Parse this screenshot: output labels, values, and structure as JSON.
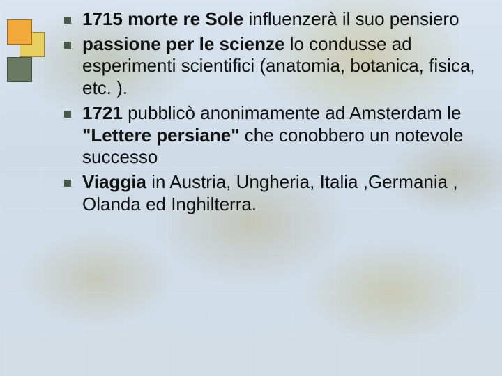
{
  "slide": {
    "background": {
      "gradient_top": "#d9e4ef",
      "gradient_mid": "#cfdce8",
      "gradient_bottom": "#d2dde6",
      "land_tone": "#b8b08a"
    },
    "decoration": {
      "squares": [
        {
          "color": "#f2a93c"
        },
        {
          "color": "#e6cf5e"
        },
        {
          "color": "#6b7862"
        }
      ]
    },
    "bullet_color": "#4a5a46",
    "font_family": "Verdana",
    "font_size_pt": 20,
    "text_color": "#111111",
    "items": [
      {
        "bold1": "1715 morte re Sole",
        "rest1": " influenzerà il suo pensiero"
      },
      {
        "bold1": "passione per le scienze",
        "rest1": " lo condusse ad esperimenti scientifici (anatomia, botanica, fisica, etc. )."
      },
      {
        "bold1": "1721",
        "rest1": " pubblicò anonimamente ad Amsterdam le ",
        "bold2": "\"Lettere persiane\"",
        "rest2": " che conobbero un notevole successo"
      },
      {
        "bold1": "Viaggia",
        "rest1": " in Austria, Ungheria, Italia ,Germania , Olanda ed Inghilterra."
      }
    ]
  }
}
